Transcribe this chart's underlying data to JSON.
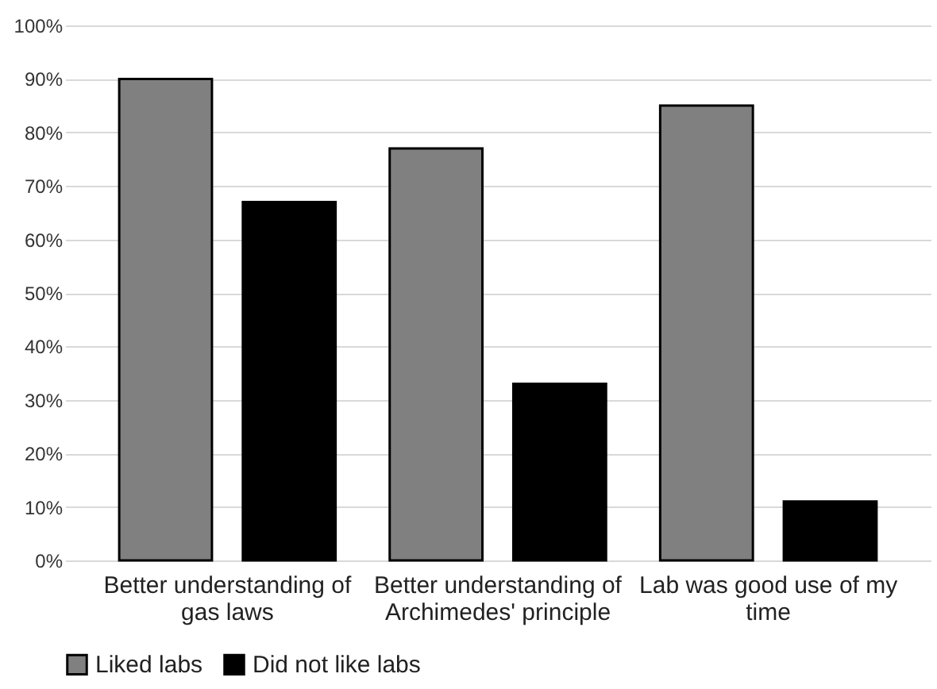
{
  "chart_data": {
    "type": "bar",
    "categories": [
      "Better understanding of gas laws",
      "Better understanding of Archimedes' principle",
      "Lab was good use of my time"
    ],
    "series": [
      {
        "name": "Liked labs",
        "color": "#808080",
        "values": [
          90,
          77,
          85
        ]
      },
      {
        "name": "Did not like labs",
        "color": "#000000",
        "values": [
          67,
          33,
          11
        ]
      }
    ],
    "ylim": [
      0,
      100
    ],
    "yticks": [
      {
        "value": 0,
        "label": "0%"
      },
      {
        "value": 10,
        "label": "10%"
      },
      {
        "value": 20,
        "label": "20%"
      },
      {
        "value": 30,
        "label": "30%"
      },
      {
        "value": 40,
        "label": "40%"
      },
      {
        "value": 50,
        "label": "50%"
      },
      {
        "value": 60,
        "label": "60%"
      },
      {
        "value": 70,
        "label": "70%"
      },
      {
        "value": 80,
        "label": "80%"
      },
      {
        "value": 90,
        "label": "90%"
      },
      {
        "value": 100,
        "label": "100%"
      }
    ],
    "grid": "y",
    "legend": "bottom"
  }
}
